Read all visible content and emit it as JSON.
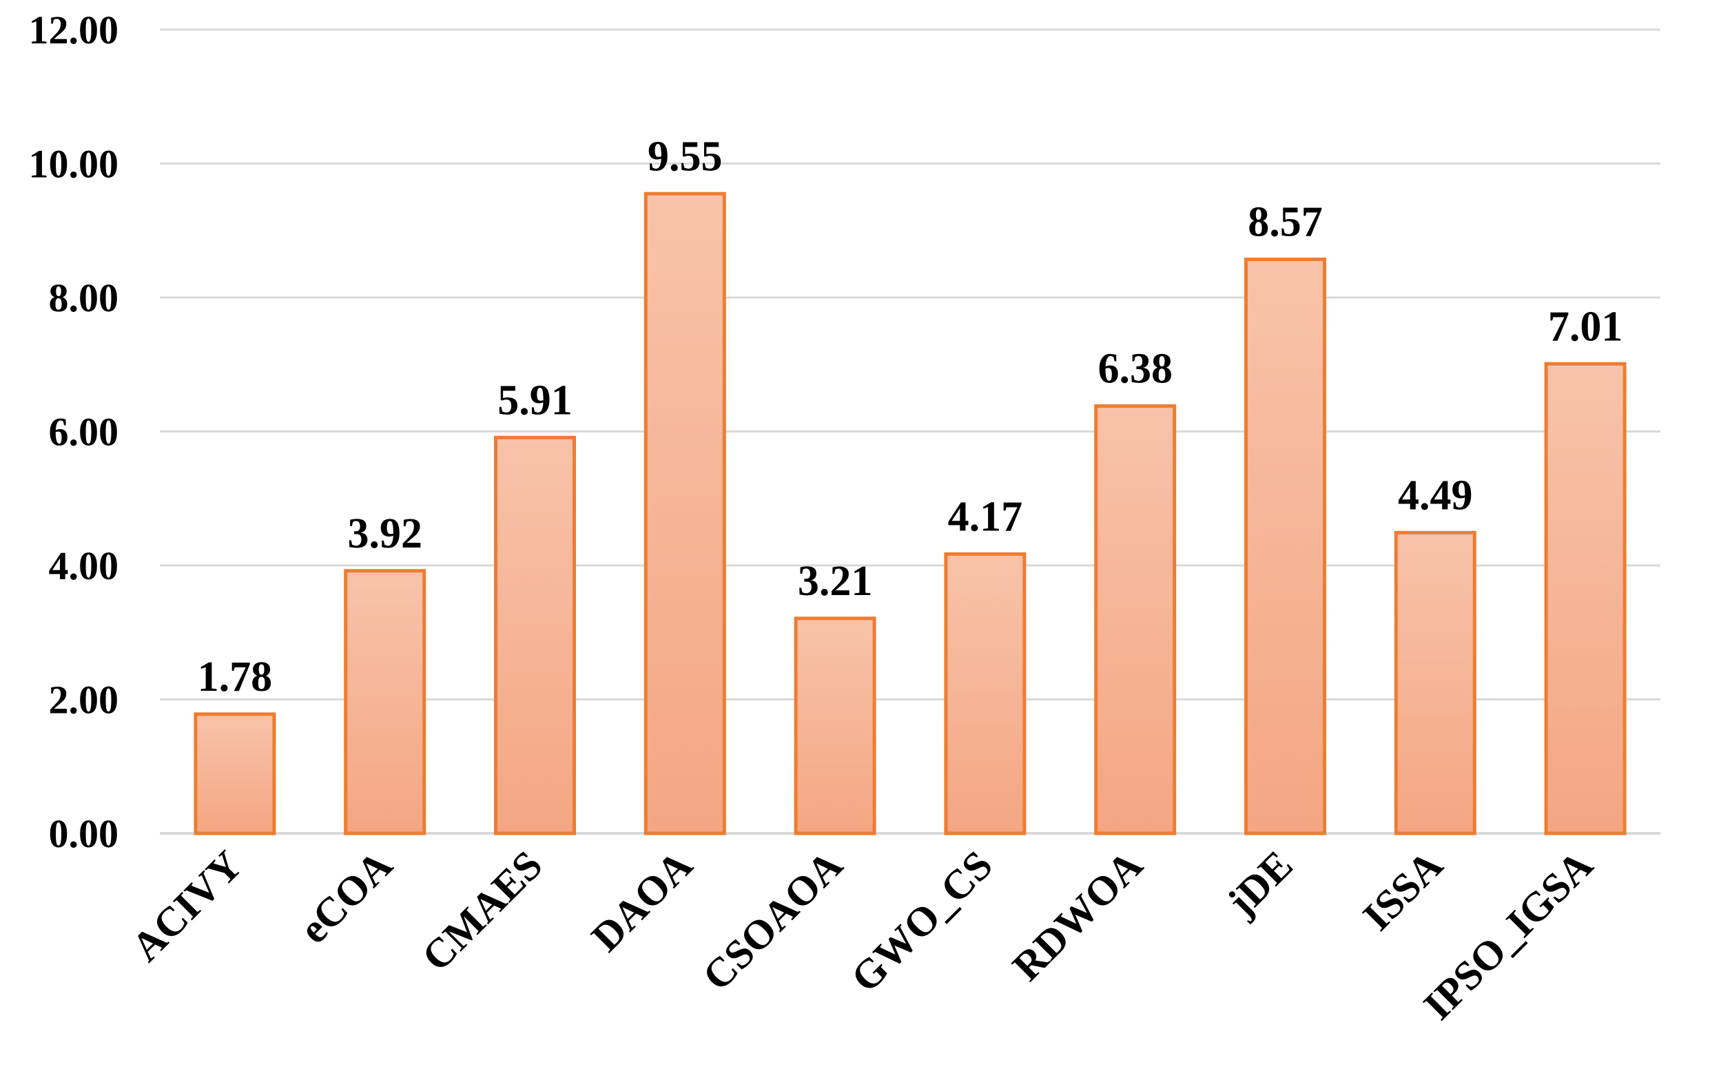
{
  "chart_data": {
    "type": "bar",
    "title": "",
    "xlabel": "",
    "ylabel": "",
    "categories": [
      "ACIVY",
      "eCOA",
      "CMAES",
      "DAOA",
      "CSOAOA",
      "GWO_CS",
      "RDWOA",
      "jDE",
      "ISSA",
      "IPSO_IGSA"
    ],
    "values": [
      1.78,
      3.92,
      5.91,
      9.55,
      3.21,
      4.17,
      6.38,
      8.57,
      4.49,
      7.01
    ],
    "value_labels": [
      "1.78",
      "3.92",
      "5.91",
      "9.55",
      "3.21",
      "4.17",
      "6.38",
      "8.57",
      "4.49",
      "7.01"
    ],
    "ylim": [
      0,
      12
    ],
    "yticks": [
      "0.00",
      "2.00",
      "4.00",
      "6.00",
      "8.00",
      "10.00",
      "12.00"
    ],
    "ytick_values": [
      0,
      2,
      4,
      6,
      8,
      10,
      12
    ],
    "grid": true,
    "legend": "none",
    "colors": {
      "bar_fill_top": "#f8c3aa",
      "bar_fill_bottom": "#f4a683",
      "bar_stroke": "#ed7d31",
      "grid": "#d9d9d9",
      "axis": "#d9d9d9",
      "text": "#000000"
    }
  }
}
